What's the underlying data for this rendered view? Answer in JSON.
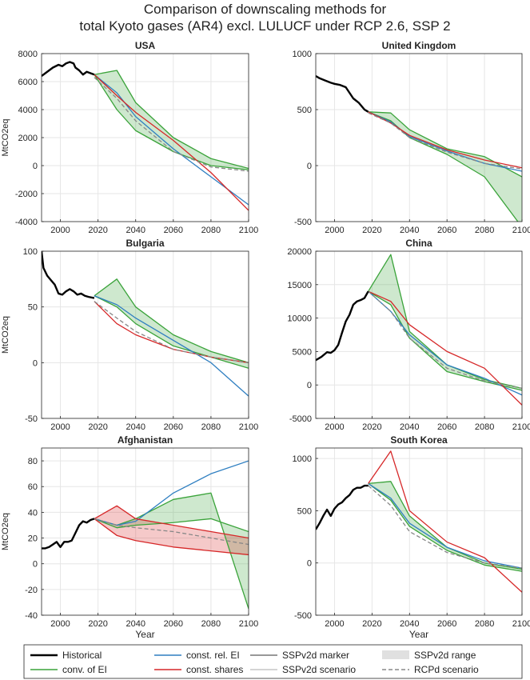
{
  "figure": {
    "title_line1": "Comparison of downscaling methods for",
    "title_line2": "total Kyoto gases (AR4) excl. LULUCF under RCP 2.6, SSP 2"
  },
  "legend": {
    "items": [
      {
        "label": "Historical",
        "color": "#000000",
        "style": "solid-thick"
      },
      {
        "label": "conv. of EI",
        "color": "#3aa33a",
        "style": "solid"
      },
      {
        "label": "const. rel. EI",
        "color": "#2f7fc1",
        "style": "solid"
      },
      {
        "label": "const. shares",
        "color": "#d62728",
        "style": "solid"
      },
      {
        "label": "SSPv2d marker",
        "color": "#777777",
        "style": "solid"
      },
      {
        "label": "SSPv2d scenario",
        "color": "#aaaaaa",
        "style": "solid-thin"
      },
      {
        "label": "SSPv2d range",
        "color": "#e0e0e0",
        "style": "patch"
      },
      {
        "label": "RCPd scenario",
        "color": "#888888",
        "style": "dashed"
      }
    ]
  },
  "chart_data": [
    {
      "type": "line",
      "title": "USA",
      "xlabel": "",
      "ylabel": "MtCO2eq",
      "xlim": [
        1990,
        2100
      ],
      "ylim": [
        -4000,
        8000
      ],
      "yticks": [
        -4000,
        -2000,
        0,
        2000,
        4000,
        6000,
        8000
      ],
      "xticks": [
        2000,
        2020,
        2040,
        2060,
        2080,
        2100
      ],
      "grid": true,
      "historical": {
        "x": [
          1990,
          1993,
          1996,
          1999,
          2001,
          2003,
          2005,
          2007,
          2008,
          2010,
          2012,
          2014,
          2016,
          2018
        ],
        "y": [
          6400,
          6700,
          7000,
          7200,
          7100,
          7300,
          7400,
          7300,
          7000,
          6800,
          6500,
          6700,
          6600,
          6500
        ]
      },
      "series": [
        {
          "method": "conv. of EI",
          "x": [
            2018,
            2030,
            2040,
            2060,
            2080,
            2100
          ],
          "y": [
            6500,
            4000,
            2500,
            1000,
            0,
            -300
          ]
        },
        {
          "method": "conv. of EI",
          "x": [
            2018,
            2030,
            2040,
            2060,
            2080,
            2100
          ],
          "y": [
            6500,
            6800,
            4500,
            2000,
            500,
            -200
          ]
        },
        {
          "method": "const. rel. EI",
          "x": [
            2018,
            2030,
            2040,
            2060,
            2080,
            2100
          ],
          "y": [
            6500,
            5200,
            3500,
            1200,
            -800,
            -2800
          ]
        },
        {
          "method": "const. shares",
          "x": [
            2018,
            2030,
            2040,
            2060,
            2080,
            2100
          ],
          "y": [
            6500,
            5000,
            3800,
            1800,
            -500,
            -3200
          ]
        },
        {
          "method": "RCPd scenario",
          "x": [
            2018,
            2030,
            2040,
            2060,
            2080,
            2100
          ],
          "y": [
            6300,
            4800,
            3200,
            1000,
            -100,
            -400
          ]
        }
      ]
    },
    {
      "type": "line",
      "title": "United Kingdom",
      "xlabel": "",
      "ylabel": "",
      "xlim": [
        1990,
        2100
      ],
      "ylim": [
        -500,
        1000
      ],
      "yticks": [
        -500,
        0,
        500,
        1000
      ],
      "xticks": [
        2000,
        2020,
        2040,
        2060,
        2080,
        2100
      ],
      "grid": true,
      "historical": {
        "x": [
          1990,
          1992,
          1995,
          1998,
          2000,
          2003,
          2006,
          2008,
          2010,
          2013,
          2016,
          2018
        ],
        "y": [
          800,
          780,
          760,
          740,
          730,
          720,
          700,
          650,
          600,
          560,
          500,
          480
        ]
      },
      "series": [
        {
          "method": "conv. of EI",
          "x": [
            2018,
            2030,
            2040,
            2060,
            2080,
            2100
          ],
          "y": [
            480,
            470,
            320,
            150,
            80,
            -100
          ]
        },
        {
          "method": "conv. of EI",
          "x": [
            2018,
            2030,
            2040,
            2060,
            2080,
            2100
          ],
          "y": [
            480,
            400,
            250,
            100,
            -100,
            -550
          ]
        },
        {
          "method": "const. rel. EI",
          "x": [
            2018,
            2030,
            2040,
            2060,
            2080,
            2100
          ],
          "y": [
            480,
            390,
            260,
            130,
            20,
            -50
          ]
        },
        {
          "method": "const. shares",
          "x": [
            2018,
            2030,
            2040,
            2060,
            2080,
            2100
          ],
          "y": [
            480,
            380,
            270,
            140,
            50,
            -20
          ]
        },
        {
          "method": "RCPd scenario",
          "x": [
            2018,
            2030,
            2040,
            2060,
            2080,
            2100
          ],
          "y": [
            470,
            380,
            250,
            120,
            20,
            -30
          ]
        }
      ]
    },
    {
      "type": "line",
      "title": "Bulgaria",
      "xlabel": "",
      "ylabel": "MtCO2eq",
      "xlim": [
        1990,
        2100
      ],
      "ylim": [
        -50,
        100
      ],
      "yticks": [
        -50,
        0,
        50,
        100
      ],
      "xticks": [
        2000,
        2020,
        2040,
        2060,
        2080,
        2100
      ],
      "grid": true,
      "historical": {
        "x": [
          1990,
          1991,
          1993,
          1995,
          1997,
          1999,
          2001,
          2003,
          2005,
          2007,
          2009,
          2011,
          2013,
          2015,
          2018
        ],
        "y": [
          100,
          85,
          78,
          74,
          70,
          62,
          61,
          64,
          66,
          64,
          61,
          62,
          60,
          59,
          58
        ]
      },
      "series": [
        {
          "method": "conv. of EI",
          "x": [
            2018,
            2030,
            2040,
            2060,
            2080,
            2100
          ],
          "y": [
            60,
            75,
            50,
            25,
            10,
            0
          ]
        },
        {
          "method": "conv. of EI",
          "x": [
            2018,
            2030,
            2040,
            2060,
            2080,
            2100
          ],
          "y": [
            60,
            50,
            35,
            15,
            5,
            -5
          ]
        },
        {
          "method": "const. rel. EI",
          "x": [
            2018,
            2030,
            2040,
            2060,
            2080,
            2100
          ],
          "y": [
            60,
            52,
            40,
            20,
            0,
            -30
          ]
        },
        {
          "method": "const. shares",
          "x": [
            2018,
            2030,
            2040,
            2060,
            2080,
            2100
          ],
          "y": [
            55,
            35,
            25,
            12,
            5,
            0
          ]
        },
        {
          "method": "RCPd scenario",
          "x": [
            2018,
            2030,
            2040,
            2060,
            2080,
            2100
          ],
          "y": [
            55,
            40,
            28,
            12,
            5,
            0
          ]
        }
      ]
    },
    {
      "type": "line",
      "title": "China",
      "xlabel": "",
      "ylabel": "",
      "xlim": [
        1990,
        2100
      ],
      "ylim": [
        -5000,
        20000
      ],
      "yticks": [
        -5000,
        0,
        5000,
        10000,
        15000,
        20000
      ],
      "xticks": [
        2000,
        2020,
        2040,
        2060,
        2080,
        2100
      ],
      "grid": true,
      "historical": {
        "x": [
          1990,
          1993,
          1996,
          1998,
          2000,
          2002,
          2004,
          2006,
          2008,
          2010,
          2012,
          2014,
          2016,
          2018
        ],
        "y": [
          3700,
          4200,
          4900,
          4800,
          5200,
          6000,
          7800,
          9500,
          10500,
          12000,
          12500,
          12700,
          13000,
          14000
        ]
      },
      "series": [
        {
          "method": "conv. of EI",
          "x": [
            2018,
            2030,
            2040,
            2060,
            2080,
            2100
          ],
          "y": [
            14000,
            19500,
            8000,
            3000,
            800,
            -500
          ]
        },
        {
          "method": "conv. of EI",
          "x": [
            2018,
            2030,
            2040,
            2060,
            2080,
            2100
          ],
          "y": [
            14000,
            12000,
            7000,
            2000,
            500,
            -800
          ]
        },
        {
          "method": "const. rel. EI",
          "x": [
            2018,
            2030,
            2040,
            2060,
            2080,
            2100
          ],
          "y": [
            14000,
            11000,
            7500,
            3000,
            1000,
            -1500
          ]
        },
        {
          "method": "const. shares",
          "x": [
            2018,
            2030,
            2040,
            2060,
            2080,
            2100
          ],
          "y": [
            14000,
            12500,
            9000,
            5000,
            2500,
            -3000
          ]
        },
        {
          "method": "RCPd scenario",
          "x": [
            2018,
            2030,
            2040,
            2060,
            2080,
            2100
          ],
          "y": [
            14000,
            11000,
            7000,
            2500,
            600,
            -500
          ]
        }
      ]
    },
    {
      "type": "line",
      "title": "Afghanistan",
      "xlabel": "Year",
      "ylabel": "MtCO2eq",
      "xlim": [
        1990,
        2100
      ],
      "ylim": [
        -40,
        90
      ],
      "yticks": [
        -40,
        -20,
        0,
        20,
        40,
        60,
        80
      ],
      "xticks": [
        2000,
        2020,
        2040,
        2060,
        2080,
        2100
      ],
      "grid": true,
      "historical": {
        "x": [
          1990,
          1992,
          1994,
          1996,
          1998,
          2000,
          2002,
          2004,
          2006,
          2008,
          2010,
          2012,
          2014,
          2016,
          2018
        ],
        "y": [
          12,
          12,
          13,
          15,
          17,
          13,
          17,
          17,
          18,
          24,
          30,
          33,
          32,
          34,
          35
        ]
      },
      "series": [
        {
          "method": "conv. of EI",
          "x": [
            2018,
            2030,
            2040,
            2060,
            2080,
            2100
          ],
          "y": [
            35,
            30,
            35,
            50,
            55,
            -35
          ]
        },
        {
          "method": "conv. of EI",
          "x": [
            2018,
            2030,
            2040,
            2060,
            2080,
            2100
          ],
          "y": [
            35,
            28,
            30,
            32,
            35,
            25
          ]
        },
        {
          "method": "const. rel. EI",
          "x": [
            2018,
            2030,
            2040,
            2060,
            2080,
            2100
          ],
          "y": [
            35,
            30,
            33,
            55,
            70,
            80
          ]
        },
        {
          "method": "const. shares",
          "x": [
            2018,
            2030,
            2040,
            2060,
            2080,
            2100
          ],
          "y": [
            35,
            22,
            18,
            13,
            10,
            7
          ]
        },
        {
          "method": "const. shares",
          "x": [
            2018,
            2030,
            2040,
            2060,
            2080,
            2100
          ],
          "y": [
            35,
            45,
            35,
            30,
            25,
            20
          ]
        },
        {
          "method": "RCPd scenario",
          "x": [
            2018,
            2030,
            2040,
            2060,
            2080,
            2100
          ],
          "y": [
            35,
            30,
            28,
            25,
            20,
            15
          ]
        }
      ]
    },
    {
      "type": "line",
      "title": "South Korea",
      "xlabel": "Year",
      "ylabel": "",
      "xlim": [
        1990,
        2100
      ],
      "ylim": [
        -500,
        1100
      ],
      "yticks": [
        -500,
        0,
        500,
        1000
      ],
      "xticks": [
        2000,
        2020,
        2040,
        2060,
        2080,
        2100
      ],
      "grid": true,
      "historical": {
        "x": [
          1990,
          1992,
          1994,
          1996,
          1998,
          2000,
          2002,
          2004,
          2006,
          2008,
          2010,
          2012,
          2014,
          2016,
          2018
        ],
        "y": [
          320,
          380,
          450,
          510,
          450,
          520,
          560,
          580,
          620,
          650,
          700,
          720,
          720,
          740,
          740
        ]
      },
      "series": [
        {
          "method": "conv. of EI",
          "x": [
            2018,
            2030,
            2040,
            2060,
            2080,
            2100
          ],
          "y": [
            760,
            780,
            450,
            150,
            0,
            -60
          ]
        },
        {
          "method": "conv. of EI",
          "x": [
            2018,
            2030,
            2040,
            2060,
            2080,
            2100
          ],
          "y": [
            760,
            600,
            350,
            120,
            -20,
            -80
          ]
        },
        {
          "method": "const. rel. EI",
          "x": [
            2018,
            2030,
            2040,
            2060,
            2080,
            2100
          ],
          "y": [
            760,
            620,
            380,
            150,
            20,
            -50
          ]
        },
        {
          "method": "const. shares",
          "x": [
            2018,
            2030,
            2040,
            2060,
            2080,
            2100
          ],
          "y": [
            760,
            1070,
            500,
            200,
            50,
            -280
          ]
        },
        {
          "method": "RCPd scenario",
          "x": [
            2018,
            2030,
            2040,
            2060,
            2080,
            2100
          ],
          "y": [
            740,
            550,
            300,
            100,
            0,
            -50
          ]
        }
      ]
    }
  ]
}
